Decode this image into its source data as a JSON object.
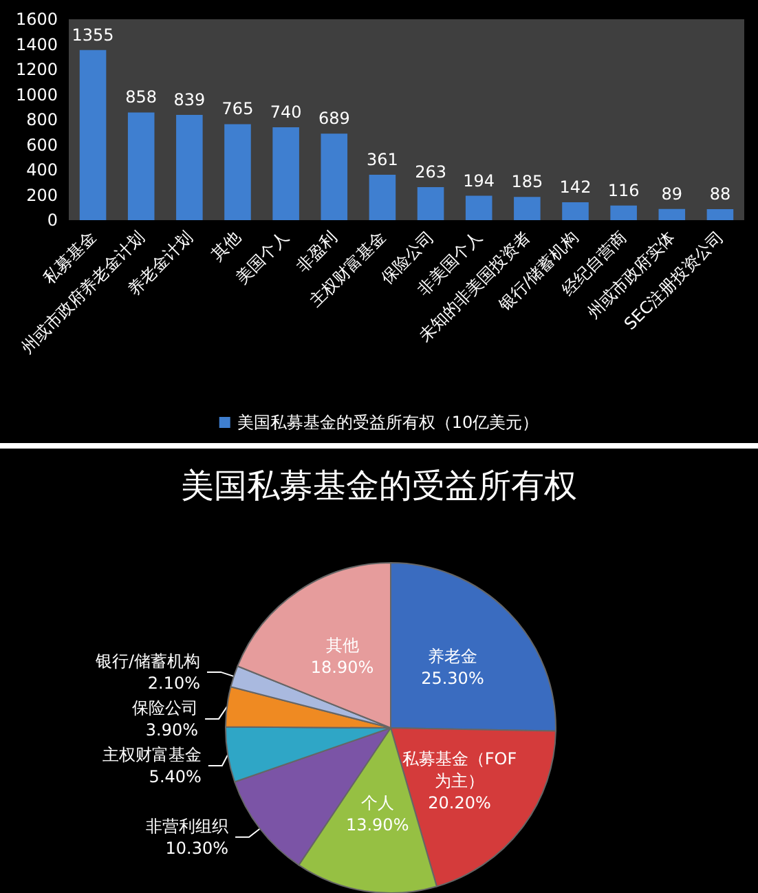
{
  "chart_data": [
    {
      "type": "bar",
      "categories": [
        "私募基金",
        "州或市政府养老金计划",
        "养老金计划",
        "其他",
        "美国个人",
        "非盈利",
        "主权财富基金",
        "保险公司",
        "非美国个人",
        "未知的非美国投资者",
        "银行/储蓄机构",
        "经纪自营商",
        "州或市政府实体",
        "SEC注册投资公司"
      ],
      "series": [
        {
          "name": "美国私募基金的受益所有权（10亿美元）",
          "color": "#3f7fd0",
          "values": [
            1355,
            858,
            839,
            765,
            740,
            689,
            361,
            263,
            194,
            185,
            142,
            116,
            89,
            88
          ]
        }
      ],
      "ylim": [
        0,
        1600
      ],
      "yticks": [
        0,
        200,
        400,
        600,
        800,
        1000,
        1200,
        1400,
        1600
      ],
      "data_labels": true,
      "grid": false,
      "legend": "bottom"
    },
    {
      "type": "pie",
      "title": "美国私募基金的受益所有权",
      "categories": [
        "养老金",
        "私募基金（FOF为主）",
        "个人",
        "非营利组织",
        "主权财富基金",
        "保险公司",
        "银行/储蓄机构",
        "其他"
      ],
      "values": [
        25.3,
        20.2,
        13.9,
        10.3,
        5.4,
        3.9,
        2.1,
        18.9
      ],
      "value_labels": [
        "25.30%",
        "20.20%",
        "13.90%",
        "10.30%",
        "5.40%",
        "3.90%",
        "2.10%",
        "18.90%"
      ],
      "colors": [
        "#3a6cc0",
        "#d43b3b",
        "#96c043",
        "#7b54a6",
        "#2fa6c6",
        "#ef8a22",
        "#a9b9df",
        "#e69c9c"
      ]
    }
  ]
}
